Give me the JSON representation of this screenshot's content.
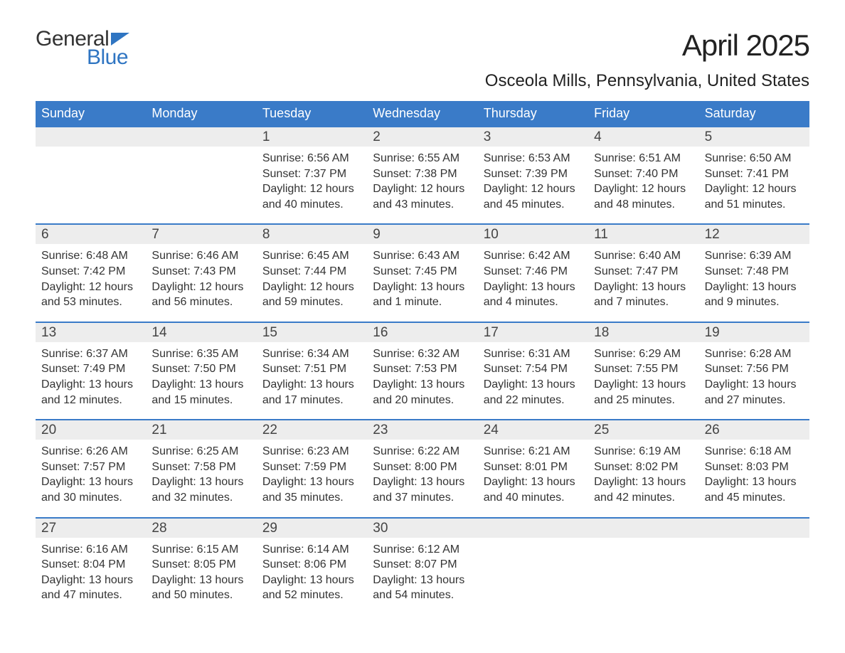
{
  "logo": {
    "text1": "General",
    "text2": "Blue",
    "icon_color": "#2f75c2"
  },
  "title": "April 2025",
  "location": "Osceola Mills, Pennsylvania, United States",
  "colors": {
    "header_bg": "#3a7bc8",
    "header_text": "#ffffff",
    "daynum_bg": "#ededed",
    "border_top": "#3a7bc8",
    "body_text": "#333333",
    "title_text": "#222222",
    "page_bg": "#ffffff"
  },
  "typography": {
    "title_fontsize": 42,
    "location_fontsize": 24,
    "header_fontsize": 18,
    "daynum_fontsize": 19,
    "detail_fontsize": 16
  },
  "day_names": [
    "Sunday",
    "Monday",
    "Tuesday",
    "Wednesday",
    "Thursday",
    "Friday",
    "Saturday"
  ],
  "labels": {
    "sunrise": "Sunrise:",
    "sunset": "Sunset:",
    "daylight": "Daylight:"
  },
  "weeks": [
    [
      {
        "n": "",
        "sr": "",
        "ss": "",
        "dl": ""
      },
      {
        "n": "",
        "sr": "",
        "ss": "",
        "dl": ""
      },
      {
        "n": "1",
        "sr": "6:56 AM",
        "ss": "7:37 PM",
        "dl": "12 hours and 40 minutes."
      },
      {
        "n": "2",
        "sr": "6:55 AM",
        "ss": "7:38 PM",
        "dl": "12 hours and 43 minutes."
      },
      {
        "n": "3",
        "sr": "6:53 AM",
        "ss": "7:39 PM",
        "dl": "12 hours and 45 minutes."
      },
      {
        "n": "4",
        "sr": "6:51 AM",
        "ss": "7:40 PM",
        "dl": "12 hours and 48 minutes."
      },
      {
        "n": "5",
        "sr": "6:50 AM",
        "ss": "7:41 PM",
        "dl": "12 hours and 51 minutes."
      }
    ],
    [
      {
        "n": "6",
        "sr": "6:48 AM",
        "ss": "7:42 PM",
        "dl": "12 hours and 53 minutes."
      },
      {
        "n": "7",
        "sr": "6:46 AM",
        "ss": "7:43 PM",
        "dl": "12 hours and 56 minutes."
      },
      {
        "n": "8",
        "sr": "6:45 AM",
        "ss": "7:44 PM",
        "dl": "12 hours and 59 minutes."
      },
      {
        "n": "9",
        "sr": "6:43 AM",
        "ss": "7:45 PM",
        "dl": "13 hours and 1 minute."
      },
      {
        "n": "10",
        "sr": "6:42 AM",
        "ss": "7:46 PM",
        "dl": "13 hours and 4 minutes."
      },
      {
        "n": "11",
        "sr": "6:40 AM",
        "ss": "7:47 PM",
        "dl": "13 hours and 7 minutes."
      },
      {
        "n": "12",
        "sr": "6:39 AM",
        "ss": "7:48 PM",
        "dl": "13 hours and 9 minutes."
      }
    ],
    [
      {
        "n": "13",
        "sr": "6:37 AM",
        "ss": "7:49 PM",
        "dl": "13 hours and 12 minutes."
      },
      {
        "n": "14",
        "sr": "6:35 AM",
        "ss": "7:50 PM",
        "dl": "13 hours and 15 minutes."
      },
      {
        "n": "15",
        "sr": "6:34 AM",
        "ss": "7:51 PM",
        "dl": "13 hours and 17 minutes."
      },
      {
        "n": "16",
        "sr": "6:32 AM",
        "ss": "7:53 PM",
        "dl": "13 hours and 20 minutes."
      },
      {
        "n": "17",
        "sr": "6:31 AM",
        "ss": "7:54 PM",
        "dl": "13 hours and 22 minutes."
      },
      {
        "n": "18",
        "sr": "6:29 AM",
        "ss": "7:55 PM",
        "dl": "13 hours and 25 minutes."
      },
      {
        "n": "19",
        "sr": "6:28 AM",
        "ss": "7:56 PM",
        "dl": "13 hours and 27 minutes."
      }
    ],
    [
      {
        "n": "20",
        "sr": "6:26 AM",
        "ss": "7:57 PM",
        "dl": "13 hours and 30 minutes."
      },
      {
        "n": "21",
        "sr": "6:25 AM",
        "ss": "7:58 PM",
        "dl": "13 hours and 32 minutes."
      },
      {
        "n": "22",
        "sr": "6:23 AM",
        "ss": "7:59 PM",
        "dl": "13 hours and 35 minutes."
      },
      {
        "n": "23",
        "sr": "6:22 AM",
        "ss": "8:00 PM",
        "dl": "13 hours and 37 minutes."
      },
      {
        "n": "24",
        "sr": "6:21 AM",
        "ss": "8:01 PM",
        "dl": "13 hours and 40 minutes."
      },
      {
        "n": "25",
        "sr": "6:19 AM",
        "ss": "8:02 PM",
        "dl": "13 hours and 42 minutes."
      },
      {
        "n": "26",
        "sr": "6:18 AM",
        "ss": "8:03 PM",
        "dl": "13 hours and 45 minutes."
      }
    ],
    [
      {
        "n": "27",
        "sr": "6:16 AM",
        "ss": "8:04 PM",
        "dl": "13 hours and 47 minutes."
      },
      {
        "n": "28",
        "sr": "6:15 AM",
        "ss": "8:05 PM",
        "dl": "13 hours and 50 minutes."
      },
      {
        "n": "29",
        "sr": "6:14 AM",
        "ss": "8:06 PM",
        "dl": "13 hours and 52 minutes."
      },
      {
        "n": "30",
        "sr": "6:12 AM",
        "ss": "8:07 PM",
        "dl": "13 hours and 54 minutes."
      },
      {
        "n": "",
        "sr": "",
        "ss": "",
        "dl": ""
      },
      {
        "n": "",
        "sr": "",
        "ss": "",
        "dl": ""
      },
      {
        "n": "",
        "sr": "",
        "ss": "",
        "dl": ""
      }
    ]
  ]
}
